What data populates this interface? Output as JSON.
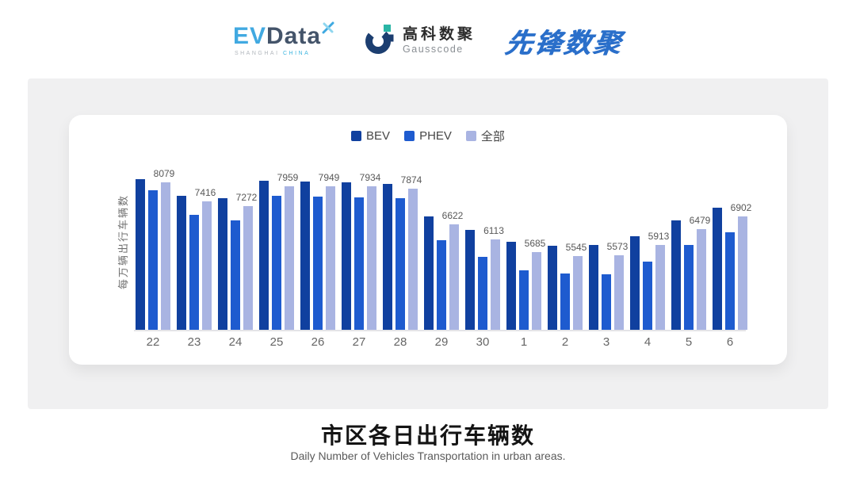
{
  "header": {
    "evdata": {
      "ev": "EV",
      "data": "Data",
      "sub_left": "SHANGHAI",
      "sub_right": "CHINA"
    },
    "gausscode": {
      "cn": "高科数聚",
      "en": "Gausscode"
    },
    "xianfeng": {
      "text": "先锋数聚"
    }
  },
  "footer": {
    "title": "市区各日出行车辆数",
    "subtitle": "Daily Number of Vehicles Transportation in urban areas."
  },
  "chart_data": {
    "type": "bar",
    "categories": [
      "22",
      "23",
      "24",
      "25",
      "26",
      "27",
      "28",
      "29",
      "30",
      "1",
      "2",
      "3",
      "4",
      "5",
      "6"
    ],
    "series": [
      {
        "name": "BEV",
        "color": "#10409f",
        "values": [
          8200,
          7630,
          7540,
          8130,
          8100,
          8090,
          8020,
          6910,
          6440,
          6040,
          5900,
          5930,
          6220,
          6780,
          7200
        ],
        "estimated": true
      },
      {
        "name": "PHEV",
        "color": "#1e5bcf",
        "values": [
          7820,
          6960,
          6760,
          7620,
          7590,
          7570,
          7530,
          6090,
          5510,
          5040,
          4930,
          4910,
          5340,
          5930,
          6360
        ],
        "estimated": true
      },
      {
        "name": "全部",
        "color": "#a9b4e2",
        "values": [
          8079,
          7416,
          7272,
          7959,
          7949,
          7934,
          7874,
          6622,
          6113,
          5685,
          5545,
          5573,
          5913,
          6479,
          6902
        ],
        "labels_shown": true
      }
    ],
    "ylabel": "每万辆出行车辆数",
    "xlabel": "",
    "ylim": [
      3000,
      8600
    ],
    "grid": false,
    "legend_position": "top",
    "note": "Only the 全部 series shows data labels; BEV/PHEV values estimated from bar heights."
  }
}
